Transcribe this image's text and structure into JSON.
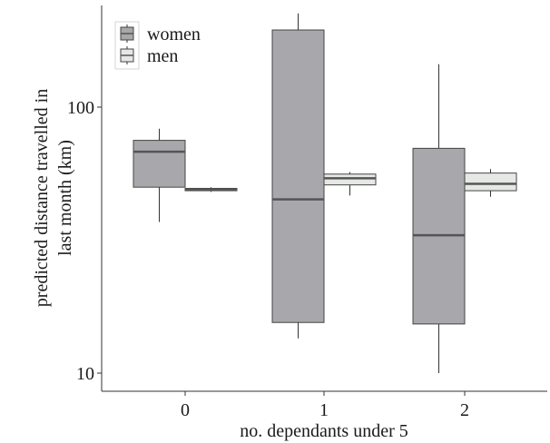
{
  "chart_data": {
    "type": "boxplot",
    "title": "",
    "xlabel": "no. dependants under 5",
    "ylabel_lines": [
      "predicted distance travelled in",
      "last month (km)"
    ],
    "y_scale": "log10",
    "ylim": [
      9,
      250
    ],
    "y_ticks": [
      {
        "value": 10,
        "label": "10"
      },
      {
        "value": 100,
        "label": "100"
      }
    ],
    "categories": [
      "0",
      "1",
      "2"
    ],
    "legend": {
      "position": "top-left"
    },
    "series": [
      {
        "name": "women",
        "color": "#a8a8ac",
        "boxes": [
          {
            "category": "0",
            "min": 37,
            "q1": 50,
            "median": 68,
            "q3": 75,
            "max": 83
          },
          {
            "category": "1",
            "min": 13.5,
            "q1": 15.5,
            "median": 45,
            "q3": 195,
            "max": 225
          },
          {
            "category": "2",
            "min": 10,
            "q1": 15.3,
            "median": 33,
            "q3": 70,
            "max": 145
          }
        ]
      },
      {
        "name": "men",
        "color": "#e6e8e6",
        "boxes": [
          {
            "category": "0",
            "min": 48,
            "q1": 48.5,
            "median": 49,
            "q3": 49.5,
            "max": 50
          },
          {
            "category": "1",
            "min": 46.5,
            "q1": 51,
            "median": 54,
            "q3": 56,
            "max": 57
          },
          {
            "category": "2",
            "min": 46,
            "q1": 48.5,
            "median": 51.5,
            "q3": 56.5,
            "max": 58.5
          }
        ]
      }
    ]
  }
}
